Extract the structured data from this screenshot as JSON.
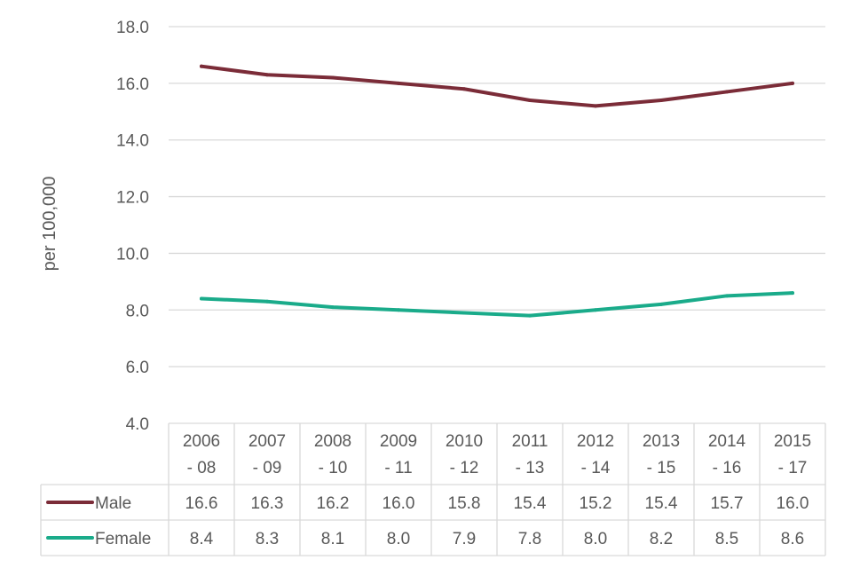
{
  "chart_data": {
    "type": "line",
    "title": "",
    "xlabel": "",
    "ylabel": "per 100,000",
    "ylim": [
      4.0,
      18.0
    ],
    "yticks": [
      "4.0",
      "6.0",
      "8.0",
      "10.0",
      "12.0",
      "14.0",
      "16.0",
      "18.0"
    ],
    "grid": true,
    "legend": "data-table",
    "categories": [
      [
        "2006",
        "- 08"
      ],
      [
        "2007",
        "- 09"
      ],
      [
        "2008",
        "- 10"
      ],
      [
        "2009",
        "- 11"
      ],
      [
        "2010",
        "- 12"
      ],
      [
        "2011",
        "- 13"
      ],
      [
        "2012",
        "- 14"
      ],
      [
        "2013",
        "- 15"
      ],
      [
        "2014",
        "- 16"
      ],
      [
        "2015",
        "- 17"
      ]
    ],
    "series": [
      {
        "name": "Male",
        "color": "#7b2c38",
        "values": [
          16.6,
          16.3,
          16.2,
          16.0,
          15.8,
          15.4,
          15.2,
          15.4,
          15.7,
          16.0
        ],
        "labels": [
          "16.6",
          "16.3",
          "16.2",
          "16.0",
          "15.8",
          "15.4",
          "15.2",
          "15.4",
          "15.7",
          "16.0"
        ]
      },
      {
        "name": "Female",
        "color": "#1aab8a",
        "values": [
          8.4,
          8.3,
          8.1,
          8.0,
          7.9,
          7.8,
          8.0,
          8.2,
          8.5,
          8.6
        ],
        "labels": [
          "8.4",
          "8.3",
          "8.1",
          "8.0",
          "7.9",
          "7.8",
          "8.0",
          "8.2",
          "8.5",
          "8.6"
        ]
      }
    ]
  }
}
